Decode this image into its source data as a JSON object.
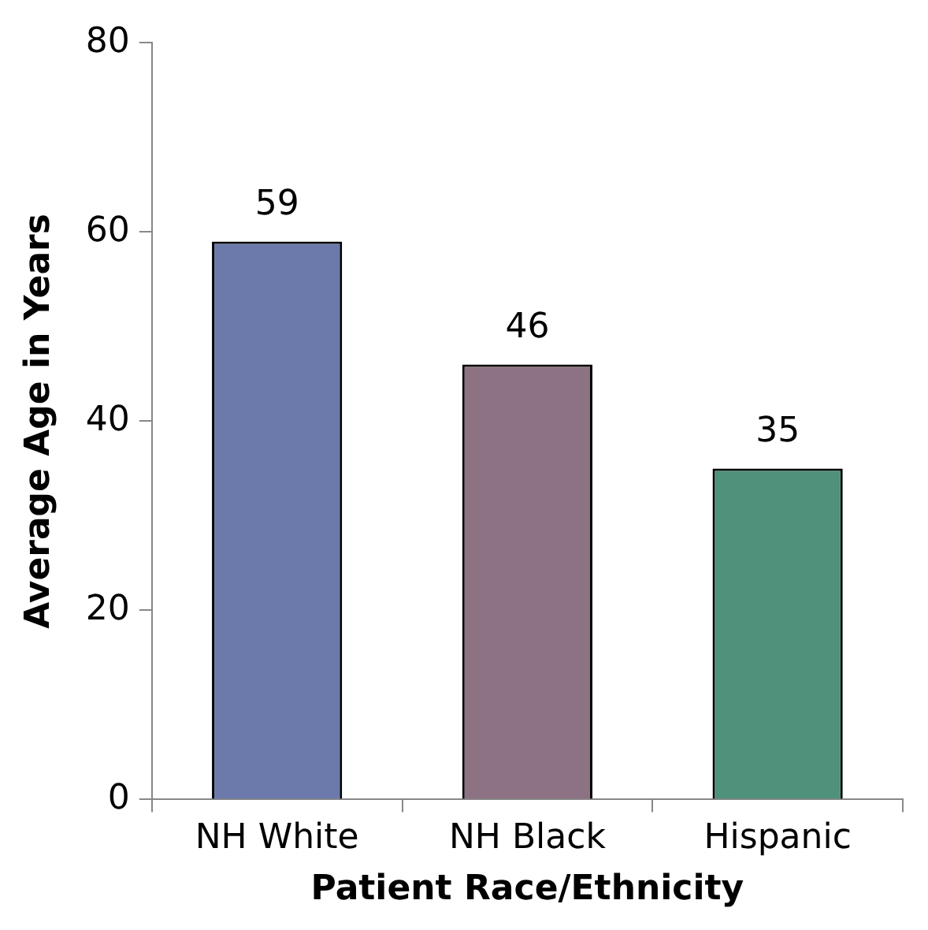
{
  "chart_data": {
    "type": "bar",
    "xlabel": "Patient Race/Ethnicity",
    "ylabel": "Average Age in Years",
    "categories": [
      "NH White",
      "NH Black",
      "Hispanic"
    ],
    "values": [
      59,
      46,
      35
    ],
    "colors": [
      "#6b7aab",
      "#8c7282",
      "#4f917a"
    ],
    "ylim": [
      0,
      80
    ],
    "yticks": [
      0,
      20,
      40,
      60,
      80
    ],
    "grid": false,
    "legend": false,
    "data_labels": true
  }
}
